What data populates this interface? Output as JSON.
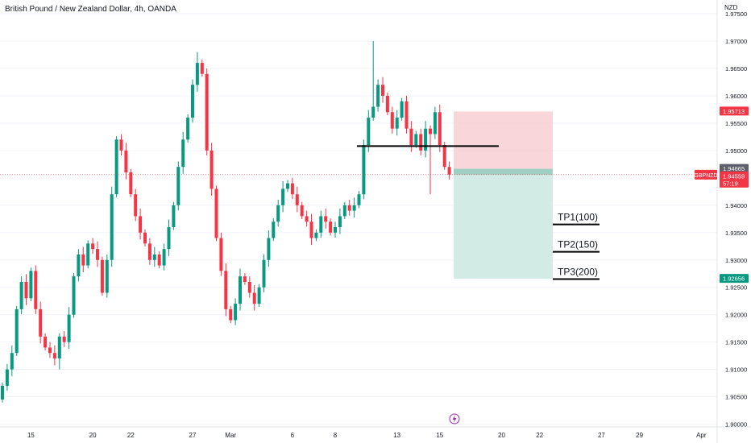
{
  "header": {
    "title": "British Pound / New Zealand Dollar, 4h, OANDA",
    "currency": "NZD"
  },
  "chart_data": {
    "type": "candlestick",
    "title": "British Pound / New Zealand Dollar, 4h, OANDA",
    "ylim": [
      1.8995,
      1.9775
    ],
    "y_ticks": [
      "1.97500",
      "1.97000",
      "1.96500",
      "1.96000",
      "1.95500",
      "1.95000",
      "1.94500",
      "1.94000",
      "1.93500",
      "1.93000",
      "1.92500",
      "1.92000",
      "1.91500",
      "1.91000",
      "1.90500",
      "1.90000"
    ],
    "x_ticks": [
      {
        "label": "15",
        "bar": 6
      },
      {
        "label": "20",
        "bar": 19
      },
      {
        "label": "22",
        "bar": 27
      },
      {
        "label": "27",
        "bar": 40
      },
      {
        "label": "Mar",
        "bar": 48
      },
      {
        "label": "6",
        "bar": 61
      },
      {
        "label": "8",
        "bar": 70
      },
      {
        "label": "13",
        "bar": 83
      },
      {
        "label": "15",
        "bar": 92
      },
      {
        "label": "20",
        "bar": 105
      },
      {
        "label": "22",
        "bar": 113
      },
      {
        "label": "27",
        "bar": 126
      },
      {
        "label": "29",
        "bar": 134
      },
      {
        "label": "Apr",
        "bar": 147
      }
    ],
    "closes": [
      1.907,
      1.91,
      1.913,
      1.921,
      1.926,
      1.923,
      1.928,
      1.921,
      1.916,
      1.914,
      1.913,
      1.912,
      1.916,
      1.915,
      1.92,
      1.927,
      1.931,
      1.929,
      1.933,
      1.932,
      1.93,
      1.924,
      1.93,
      1.942,
      1.952,
      1.95,
      1.946,
      1.942,
      1.938,
      1.935,
      1.933,
      1.93,
      1.931,
      1.929,
      1.932,
      1.936,
      1.94,
      1.947,
      1.952,
      1.956,
      1.962,
      1.966,
      1.964,
      1.95,
      1.943,
      1.934,
      1.928,
      1.921,
      1.919,
      1.922,
      1.927,
      1.926,
      1.924,
      1.922,
      1.925,
      1.93,
      1.934,
      1.937,
      1.94,
      1.943,
      1.944,
      1.942,
      1.94,
      1.938,
      1.937,
      1.934,
      1.935,
      1.938,
      1.937,
      1.935,
      1.936,
      1.938,
      1.94,
      1.939,
      1.94,
      1.942,
      1.951,
      1.956,
      1.958,
      1.962,
      1.96,
      1.957,
      1.954,
      1.956,
      1.959,
      1.954,
      1.951,
      1.953,
      1.95,
      1.954,
      1.953,
      1.957,
      1.951,
      1.947,
      1.9456
    ],
    "high_point": 1.97,
    "low_point": 1.91,
    "current_price_label": "GBPNZD",
    "price_tags": [
      {
        "value": "1.95713",
        "color": "#f23645",
        "sub": ""
      },
      {
        "value": "1.94665",
        "color": "#5d606b",
        "sub": ""
      },
      {
        "value": "1.94559",
        "color": "#f23645",
        "sub": "57:19"
      },
      {
        "value": "1.92656",
        "color": "#089981",
        "sub": ""
      }
    ],
    "position": {
      "type": "short",
      "entry": 1.94665,
      "stop": 1.95713,
      "target": 1.92656
    },
    "resistance_level": 1.9508,
    "annotations": [
      {
        "text": "TP1(100)",
        "price": 1.9365
      },
      {
        "text": "TP2(150)",
        "price": 1.9315
      },
      {
        "text": "TP3(200)",
        "price": 1.9265
      }
    ],
    "colors": {
      "up": "#089981",
      "down": "#f23645",
      "stop_zone": "#f7c5c9",
      "target_zone": "#cde9e2",
      "grid": "#f0f3fa"
    }
  }
}
